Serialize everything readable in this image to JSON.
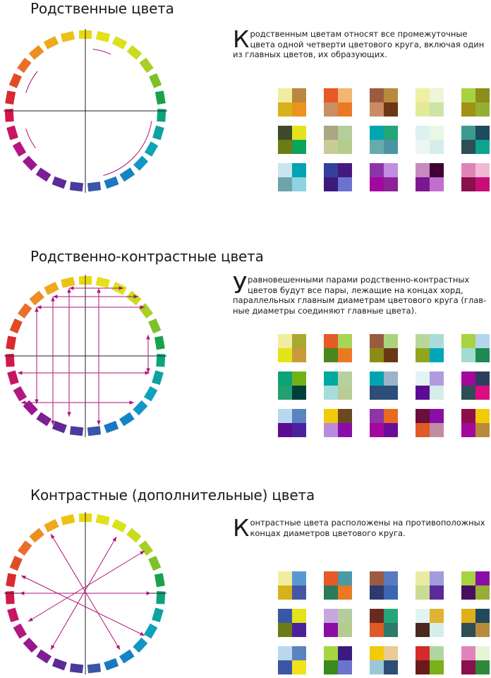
{
  "sections": [
    {
      "title": "Родственные цвета",
      "dropcap": "К",
      "lines": [
        "родственным цветам относят все промежуточные",
        "цвета одной четверти цветового круга, включая один",
        "из главных цветов, их образующих."
      ],
      "swatches": [
        [
          [
            "#f1eda0",
            "#b8883e",
            "#d8b21a",
            "#ec921e"
          ],
          [
            "#e55a25",
            "#f4b574",
            "#c98e64",
            "#ea7a22"
          ],
          [
            "#9b5b41",
            "#b98a3c",
            "#c98c62",
            "#6b3716"
          ],
          [
            "#eff0a3",
            "#f0f4d8",
            "#e2ea9a",
            "#cde4a6"
          ],
          [
            "#a8d341",
            "#8c8d1a",
            "#a19117",
            "#95ae34"
          ]
        ],
        [
          [
            "#3f4a2a",
            "#e3e31c",
            "#6d7b17",
            "#0ca35a"
          ],
          [
            "#a9a784",
            "#b3ce9c",
            "#c8cc96",
            "#b5cc8c"
          ],
          [
            "#00a6b0",
            "#25a679",
            "#69aaab",
            "#4b94a6"
          ],
          [
            "#ddf1ef",
            "#e8f7e6",
            "#ecf7f5",
            "#d3eeeb"
          ],
          [
            "#3c9b8e",
            "#1f4a5c",
            "#2c4e54",
            "#0ca390"
          ]
        ],
        [
          [
            "#c9e6ef",
            "#00a3b4",
            "#6fa3aa",
            "#8fd3e0"
          ],
          [
            "#353f9e",
            "#451a80",
            "#3d1a7a",
            "#6c73cf"
          ],
          [
            "#8d35a8",
            "#c28ce0",
            "#a3079d",
            "#8e2297"
          ],
          [
            "#c789bf",
            "#3e0234",
            "#7d1691",
            "#c06fcf"
          ],
          [
            "#e083b9",
            "#f2b8d6",
            "#8a0f4d",
            "#c80e76"
          ]
        ]
      ]
    },
    {
      "title": "Родственно-контрастные цвета",
      "dropcap": "У",
      "lines": [
        "равновешенными парами родственно-контрастных",
        "цветов будут все пары, лежащие на концах хорд,",
        "параллельных главным диаметрам цветового круга (глав-",
        "ные диаметры соединяют главные цвета)."
      ],
      "swatches": [
        [
          [
            "#f1eda0",
            "#a9a932",
            "#e4e41a",
            "#c99a3a"
          ],
          [
            "#e55a25",
            "#a6d558",
            "#4a861e",
            "#ea7a22"
          ],
          [
            "#9b5b41",
            "#a9d57a",
            "#8c8c15",
            "#6b3716"
          ],
          [
            "#b7d89a",
            "#a9dcd8",
            "#92a51e",
            "#00a5b7"
          ],
          [
            "#a8d341",
            "#b3d6ec",
            "#a2dcd1",
            "#1d8a52"
          ]
        ],
        [
          [
            "#0ca37a",
            "#72b219",
            "#24a071",
            "#023f3a"
          ],
          [
            "#00a99d",
            "#b8d0a0",
            "#a6dcd9",
            "#b8cc95"
          ],
          [
            "#00a4b0",
            "#9bb3c8",
            "#2c4e78",
            "#2c4e78"
          ],
          [
            "#e2f3f2",
            "#b29ae0",
            "#5b0c92",
            "#d4ede9"
          ],
          [
            "#a3079d",
            "#2c3e5c",
            "#2c4e54",
            "#da0d82"
          ]
        ],
        [
          [
            "#b9d7ef",
            "#5a84c0",
            "#5a0c92",
            "#4a229d"
          ],
          [
            "#f2cb08",
            "#6a4a1e",
            "#b98bdc",
            "#8a0ea6"
          ],
          [
            "#8d35a8",
            "#e86a22",
            "#a3079d",
            "#6a0e9a"
          ],
          [
            "#6a0f3c",
            "#8a0ea6",
            "#e05a25",
            "#c38ca5"
          ],
          [
            "#8a0f4d",
            "#f2cb08",
            "#a3079d",
            "#b98a3c"
          ]
        ]
      ]
    },
    {
      "title": "Контрастные (дополнительные) цвета",
      "dropcap": "К",
      "lines": [
        "онтрастные цвета расположены на противоположных",
        "концах диаметров цветового круга."
      ],
      "swatches": [
        [
          [
            "#f1eda0",
            "#5b98d2",
            "#d8b21a",
            "#4456a6"
          ],
          [
            "#e55a25",
            "#4a9aa6",
            "#2c7a5a",
            "#ea7a22"
          ],
          [
            "#9b5b41",
            "#5a7ac0",
            "#2c3a6e",
            "#3a67b3"
          ],
          [
            "#e8eca0",
            "#a29bdc",
            "#c9dc94",
            "#5a2a9a"
          ],
          [
            "#a8d341",
            "#8a0ea6",
            "#4a0c5e",
            "#95ae34"
          ]
        ],
        [
          [
            "#3a56a6",
            "#e3e31c",
            "#6d7b17",
            "#4a229d"
          ],
          [
            "#c8a8dc",
            "#b3ce9c",
            "#8a0ea6",
            "#b5cc8c"
          ],
          [
            "#6b2a1e",
            "#25a679",
            "#e05a25",
            "#2c7a6a"
          ],
          [
            "#e2f3f2",
            "#e0b430",
            "#4a2a1e",
            "#d3eeeb"
          ],
          [
            "#e0b018",
            "#1f4a5c",
            "#2c4e54",
            "#b98a3c"
          ]
        ],
        [
          [
            "#b9d7ef",
            "#5a84c0",
            "#3a56a6",
            "#f2e21a"
          ],
          [
            "#a6d541",
            "#3a1a80",
            "#3a8a1e",
            "#6c73cf"
          ],
          [
            "#f2cb08",
            "#e8cc94",
            "#9bc8d8",
            "#2c4e78"
          ],
          [
            "#d42a2a",
            "#b0d6a0",
            "#6a1a1a",
            "#7ab01a"
          ],
          [
            "#e083b9",
            "#e8f4d8",
            "#8a0f4d",
            "#2c8a3a"
          ]
        ]
      ]
    }
  ]
}
